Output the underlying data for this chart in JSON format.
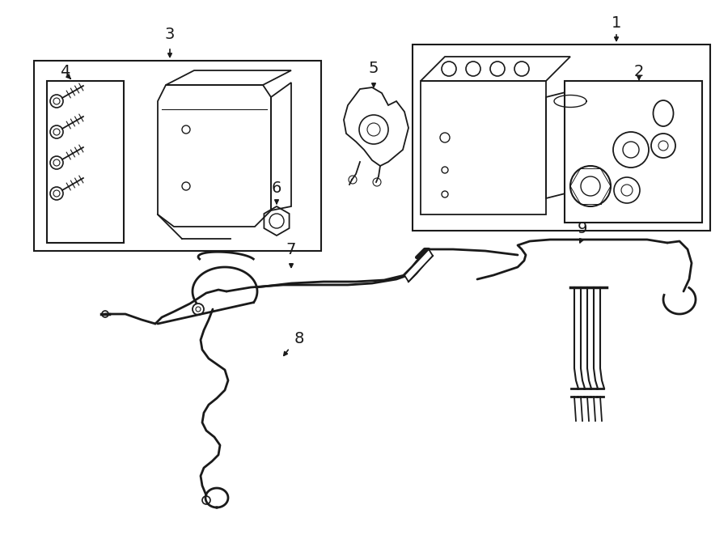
{
  "bg_color": "#ffffff",
  "line_color": "#1a1a1a",
  "fig_width": 9.0,
  "fig_height": 6.61,
  "dpi": 100,
  "label_fontsize": 14
}
